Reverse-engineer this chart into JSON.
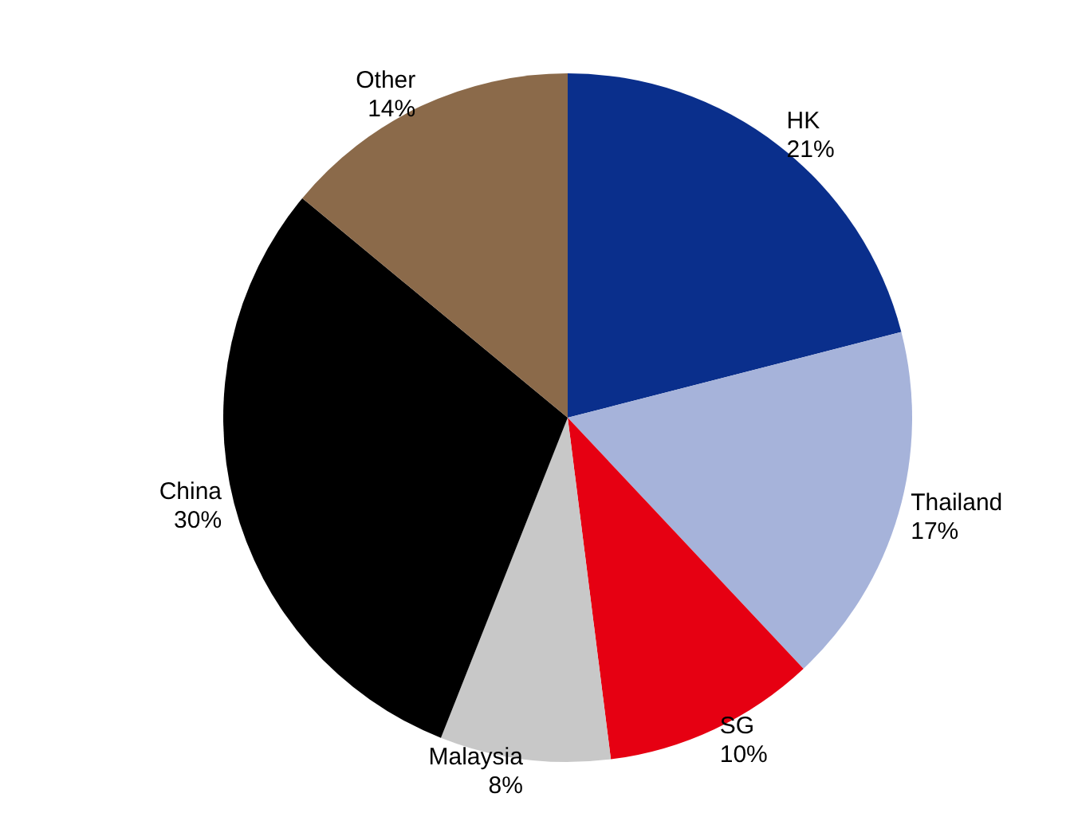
{
  "chart_data": {
    "type": "pie",
    "categories": [
      "HK",
      "Thailand",
      "SG",
      "Malaysia",
      "China",
      "Other"
    ],
    "values": [
      21,
      17,
      10,
      8,
      30,
      14
    ],
    "value_labels": [
      "21%",
      "17%",
      "10%",
      "8%",
      "30%",
      "14%"
    ],
    "colors": [
      "#0a2f8c",
      "#a6b3da",
      "#e60012",
      "#c8c8c8",
      "#000000",
      "#8b6a4a"
    ],
    "legend": false
  }
}
